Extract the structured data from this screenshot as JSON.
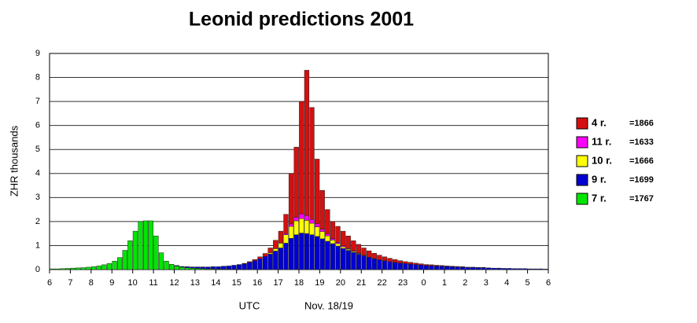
{
  "chart_data": {
    "type": "bar",
    "stacked": true,
    "title": "Leonid predictions 2001",
    "y_label": "ZHR thousands",
    "x_label": "UTC",
    "x_sublabel": "Nov. 18/19",
    "bar_width": 0.25,
    "xlim": [
      6,
      30
    ],
    "xticks": [
      6,
      7,
      8,
      9,
      10,
      11,
      12,
      13,
      14,
      15,
      16,
      17,
      18,
      19,
      20,
      21,
      22,
      23,
      {
        "value": 24,
        "label": "0"
      },
      {
        "value": 25,
        "label": "1"
      },
      {
        "value": 26,
        "label": "2"
      },
      {
        "value": 27,
        "label": "3"
      },
      {
        "value": 28,
        "label": "4"
      },
      {
        "value": 29,
        "label": "5"
      },
      {
        "value": 30,
        "label": "6"
      }
    ],
    "ylim": [
      0,
      9
    ],
    "yticks": [
      0,
      1,
      2,
      3,
      4,
      5,
      6,
      7,
      8,
      9
    ],
    "grid": true,
    "legend": "right",
    "x": [
      6,
      6.25,
      6.5,
      6.75,
      7,
      7.25,
      7.5,
      7.75,
      8,
      8.25,
      8.5,
      8.75,
      9,
      9.25,
      9.5,
      9.75,
      10,
      10.25,
      10.5,
      10.75,
      11,
      11.25,
      11.5,
      11.75,
      12,
      12.25,
      12.5,
      12.75,
      13,
      13.25,
      13.5,
      13.75,
      14,
      14.25,
      14.5,
      14.75,
      15,
      15.25,
      15.5,
      15.75,
      16,
      16.25,
      16.5,
      16.75,
      17,
      17.25,
      17.5,
      17.75,
      18,
      18.25,
      18.5,
      18.75,
      19,
      19.25,
      19.5,
      19.75,
      20,
      20.25,
      20.5,
      20.75,
      21,
      21.25,
      21.5,
      21.75,
      22,
      22.25,
      22.5,
      22.75,
      23,
      23.25,
      23.5,
      23.75,
      24,
      24.25,
      24.5,
      24.75,
      25,
      25.25,
      25.5,
      25.75,
      26,
      26.25,
      26.5,
      26.75,
      27,
      27.25,
      27.5,
      27.75,
      28,
      28.25,
      28.5,
      28.75,
      29,
      29.25,
      29.5,
      29.75
    ],
    "series": [
      {
        "name": "7 r.",
        "legend_note": "=1767",
        "color": "#00e600",
        "values": [
          0.03,
          0.03,
          0.04,
          0.05,
          0.06,
          0.07,
          0.08,
          0.1,
          0.12,
          0.15,
          0.2,
          0.25,
          0.35,
          0.5,
          0.8,
          1.2,
          1.6,
          2.0,
          2.03,
          2.03,
          1.4,
          0.7,
          0.35,
          0.22,
          0.15,
          0.1,
          0.08,
          0.06,
          0.05,
          0.04,
          0.03,
          0.03,
          0.02,
          0.02,
          0.01,
          0.01,
          0,
          0,
          0,
          0,
          0,
          0,
          0,
          0,
          0,
          0,
          0,
          0,
          0,
          0,
          0,
          0,
          0,
          0,
          0,
          0,
          0,
          0,
          0,
          0,
          0,
          0,
          0,
          0,
          0,
          0,
          0,
          0,
          0,
          0,
          0,
          0,
          0,
          0,
          0,
          0,
          0,
          0,
          0,
          0,
          0,
          0,
          0,
          0,
          0,
          0,
          0,
          0,
          0,
          0,
          0,
          0,
          0,
          0,
          0,
          0
        ]
      },
      {
        "name": "9 r.",
        "legend_note": "=1699",
        "color": "#0000d0",
        "values": [
          0,
          0,
          0,
          0,
          0,
          0,
          0,
          0,
          0,
          0,
          0,
          0,
          0,
          0,
          0,
          0,
          0,
          0,
          0,
          0,
          0,
          0,
          0,
          0,
          0.02,
          0.03,
          0.04,
          0.05,
          0.06,
          0.07,
          0.08,
          0.09,
          0.1,
          0.12,
          0.14,
          0.17,
          0.2,
          0.24,
          0.3,
          0.37,
          0.45,
          0.55,
          0.65,
          0.77,
          0.9,
          1.1,
          1.3,
          1.45,
          1.52,
          1.5,
          1.45,
          1.38,
          1.28,
          1.18,
          1.08,
          0.98,
          0.88,
          0.8,
          0.72,
          0.64,
          0.57,
          0.51,
          0.46,
          0.41,
          0.37,
          0.33,
          0.3,
          0.27,
          0.25,
          0.23,
          0.21,
          0.19,
          0.17,
          0.16,
          0.15,
          0.14,
          0.13,
          0.12,
          0.11,
          0.1,
          0.09,
          0.09,
          0.08,
          0.08,
          0.07,
          0.06,
          0.06,
          0.05,
          0.05,
          0.04,
          0.04,
          0.04,
          0.03,
          0.03,
          0.03,
          0.02
        ]
      },
      {
        "name": "10 r.",
        "legend_note": "=1666",
        "color": "#ffff00",
        "values": [
          0,
          0,
          0,
          0,
          0,
          0,
          0,
          0,
          0,
          0,
          0,
          0,
          0,
          0,
          0,
          0,
          0,
          0,
          0,
          0,
          0,
          0,
          0,
          0,
          0,
          0,
          0,
          0,
          0,
          0,
          0,
          0,
          0,
          0,
          0,
          0,
          0,
          0,
          0,
          0,
          0,
          0,
          0.05,
          0.1,
          0.2,
          0.35,
          0.5,
          0.58,
          0.6,
          0.55,
          0.48,
          0.4,
          0.3,
          0.22,
          0.15,
          0.1,
          0.07,
          0.05,
          0.04,
          0.03,
          0.02,
          0.01,
          0,
          0,
          0,
          0,
          0,
          0,
          0,
          0,
          0,
          0,
          0,
          0,
          0,
          0,
          0,
          0,
          0,
          0,
          0,
          0,
          0,
          0,
          0,
          0,
          0,
          0,
          0,
          0,
          0,
          0,
          0,
          0,
          0,
          0
        ]
      },
      {
        "name": "11 r.",
        "legend_note": "=1633",
        "color": "#ff00ff",
        "values": [
          0,
          0,
          0,
          0,
          0,
          0,
          0,
          0,
          0,
          0,
          0,
          0,
          0,
          0,
          0,
          0,
          0,
          0,
          0,
          0,
          0,
          0,
          0,
          0,
          0,
          0,
          0,
          0,
          0,
          0,
          0,
          0,
          0,
          0,
          0,
          0,
          0,
          0,
          0,
          0,
          0,
          0,
          0,
          0,
          0,
          0.05,
          0.1,
          0.15,
          0.2,
          0.2,
          0.16,
          0.13,
          0.1,
          0.08,
          0.06,
          0.05,
          0.04,
          0.03,
          0.02,
          0.02,
          0.01,
          0,
          0,
          0,
          0,
          0,
          0,
          0,
          0,
          0,
          0,
          0,
          0,
          0,
          0,
          0,
          0,
          0,
          0,
          0,
          0,
          0,
          0,
          0,
          0,
          0,
          0,
          0,
          0,
          0,
          0,
          0,
          0,
          0,
          0,
          0
        ]
      },
      {
        "name": "4 r.",
        "legend_note": "=1866",
        "color": "#d41010",
        "values": [
          0,
          0,
          0,
          0,
          0,
          0,
          0,
          0,
          0,
          0,
          0,
          0,
          0,
          0,
          0,
          0,
          0,
          0,
          0,
          0,
          0,
          0,
          0,
          0,
          0,
          0,
          0,
          0,
          0,
          0,
          0,
          0,
          0,
          0,
          0,
          0,
          0.01,
          0.02,
          0.03,
          0.05,
          0.08,
          0.12,
          0.2,
          0.35,
          0.5,
          0.8,
          2.1,
          2.92,
          4.68,
          6.05,
          4.66,
          2.69,
          1.62,
          1.02,
          0.71,
          0.67,
          0.61,
          0.52,
          0.42,
          0.36,
          0.3,
          0.26,
          0.22,
          0.19,
          0.16,
          0.14,
          0.12,
          0.1,
          0.08,
          0.07,
          0.06,
          0.05,
          0.04,
          0.04,
          0.03,
          0.03,
          0.02,
          0.02,
          0.02,
          0.02,
          0.01,
          0.01,
          0.01,
          0.01,
          0,
          0,
          0,
          0,
          0,
          0,
          0,
          0,
          0,
          0,
          0,
          0
        ]
      }
    ]
  }
}
